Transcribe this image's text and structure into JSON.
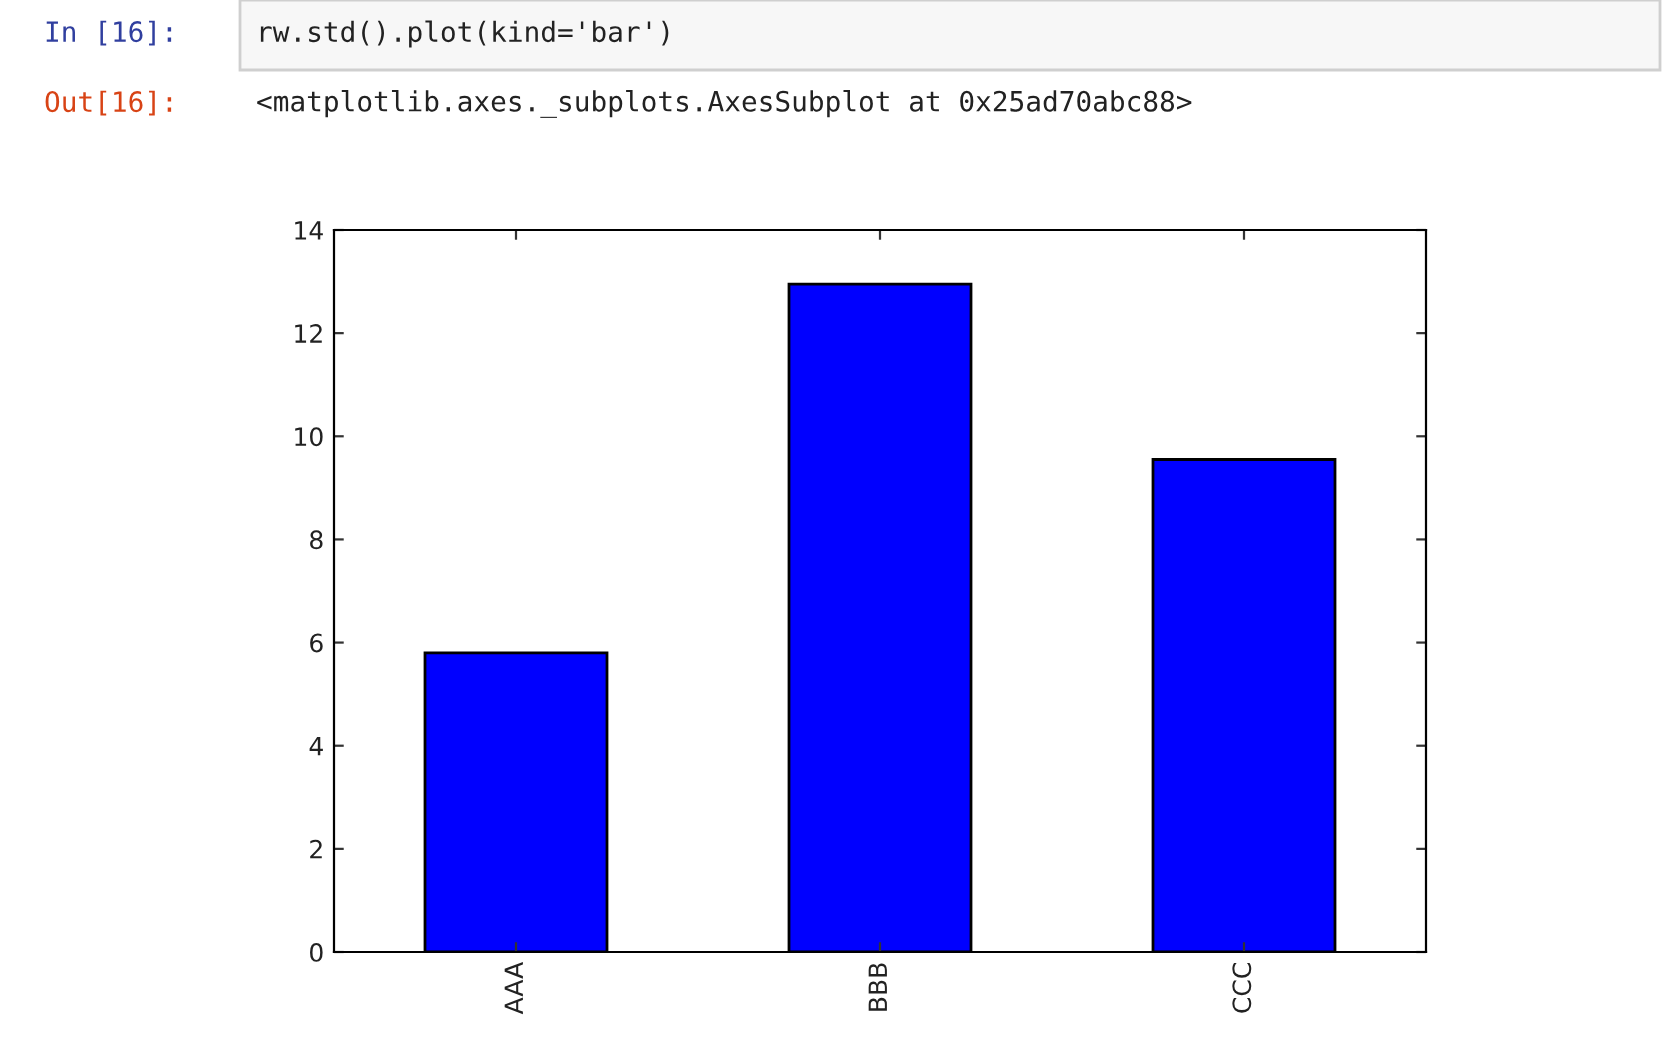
{
  "chart_data": {
    "type": "bar",
    "categories": [
      "AAA",
      "BBB",
      "CCC"
    ],
    "values": [
      5.8,
      12.95,
      9.55
    ],
    "color": "#0000ff",
    "ylim": [
      0,
      14
    ],
    "yticks": [
      0,
      2,
      4,
      6,
      8,
      10,
      12,
      14
    ],
    "grid": false,
    "legend": false,
    "annotations": [
      "In [16]:",
      "rw.std().plot(kind='bar')",
      "Out[16]:",
      "<matplotlib.axes._subplots.AxesSubplot at 0x25ad70abc88>"
    ]
  }
}
